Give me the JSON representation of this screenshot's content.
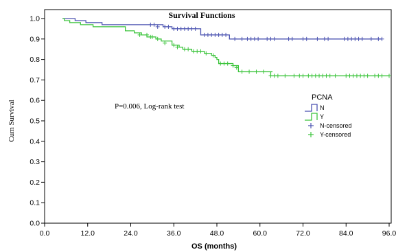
{
  "chart_data": {
    "type": "line",
    "title": "Survival Functions",
    "xlabel": "OS (months)",
    "ylabel": "Cum Survival",
    "xlim": [
      0,
      96
    ],
    "ylim": [
      0,
      1.0
    ],
    "xticks": [
      0,
      12,
      24,
      36,
      48,
      60,
      72,
      84,
      96
    ],
    "xtick_labels": [
      "0.0",
      "12.0",
      "24.0",
      "36.0",
      "48.0",
      "60.0",
      "72.0",
      "84.0",
      "96.0"
    ],
    "yticks": [
      0,
      0.1,
      0.2,
      0.3,
      0.4,
      0.5,
      0.6,
      0.7,
      0.8,
      0.9,
      1.0
    ],
    "ytick_labels": [
      "0.0",
      "0.1",
      "0.2",
      "0.3",
      "0.4",
      "0.5",
      "0.6",
      "0.7",
      "0.8",
      "0.9",
      "1.0"
    ],
    "grid": false,
    "legend": {
      "title": "PCNA",
      "placement": "right",
      "entries": [
        {
          "label": "N",
          "kind": "line",
          "color": "#4a52b0"
        },
        {
          "label": "Y",
          "kind": "line",
          "color": "#3cc43c"
        },
        {
          "label": "N-censored",
          "kind": "censor",
          "color": "#4a52b0"
        },
        {
          "label": "Y-censored",
          "kind": "censor",
          "color": "#3cc43c"
        }
      ]
    },
    "annotations": [
      {
        "text": "P=0.006, Log-rank test",
        "x": 19.5,
        "y": 0.56
      }
    ],
    "series": [
      {
        "name": "N",
        "color": "#4a52b0",
        "steps": [
          [
            5,
            1.0
          ],
          [
            8.5,
            0.99
          ],
          [
            11.5,
            0.98
          ],
          [
            16,
            0.97
          ],
          [
            33,
            0.96
          ],
          [
            35.5,
            0.95
          ],
          [
            43.5,
            0.92
          ],
          [
            51.5,
            0.9
          ],
          [
            94,
            0.9
          ]
        ],
        "censored": [
          [
            29.5,
            0.97
          ],
          [
            30.5,
            0.97
          ],
          [
            31.5,
            0.96
          ],
          [
            33.5,
            0.96
          ],
          [
            34.5,
            0.96
          ],
          [
            36,
            0.95
          ],
          [
            37,
            0.95
          ],
          [
            38,
            0.95
          ],
          [
            39,
            0.95
          ],
          [
            40,
            0.95
          ],
          [
            41,
            0.95
          ],
          [
            42,
            0.95
          ],
          [
            44.5,
            0.92
          ],
          [
            45.5,
            0.92
          ],
          [
            46.5,
            0.92
          ],
          [
            47.5,
            0.92
          ],
          [
            48.5,
            0.92
          ],
          [
            49.5,
            0.92
          ],
          [
            50.5,
            0.92
          ],
          [
            53,
            0.9
          ],
          [
            55,
            0.9
          ],
          [
            56.5,
            0.9
          ],
          [
            57.5,
            0.9
          ],
          [
            58.5,
            0.9
          ],
          [
            59.5,
            0.9
          ],
          [
            62,
            0.9
          ],
          [
            63,
            0.9
          ],
          [
            64,
            0.9
          ],
          [
            68,
            0.9
          ],
          [
            69,
            0.9
          ],
          [
            72,
            0.9
          ],
          [
            73,
            0.9
          ],
          [
            76,
            0.9
          ],
          [
            78,
            0.9
          ],
          [
            79,
            0.9
          ],
          [
            83.5,
            0.9
          ],
          [
            84.5,
            0.9
          ],
          [
            85.5,
            0.9
          ],
          [
            86.5,
            0.9
          ],
          [
            87.5,
            0.9
          ],
          [
            88.5,
            0.9
          ],
          [
            91,
            0.9
          ],
          [
            93,
            0.9
          ],
          [
            94,
            0.9
          ]
        ]
      },
      {
        "name": "Y",
        "color": "#3cc43c",
        "steps": [
          [
            5,
            1.0
          ],
          [
            5.5,
            0.99
          ],
          [
            7,
            0.98
          ],
          [
            10,
            0.97
          ],
          [
            13.5,
            0.96
          ],
          [
            22.5,
            0.94
          ],
          [
            25,
            0.93
          ],
          [
            27,
            0.92
          ],
          [
            28.5,
            0.91
          ],
          [
            31,
            0.9
          ],
          [
            32.5,
            0.89
          ],
          [
            35.5,
            0.87
          ],
          [
            37.5,
            0.86
          ],
          [
            38.5,
            0.85
          ],
          [
            41,
            0.84
          ],
          [
            44.5,
            0.83
          ],
          [
            46.5,
            0.82
          ],
          [
            47.5,
            0.81
          ],
          [
            48,
            0.8
          ],
          [
            48.5,
            0.78
          ],
          [
            50,
            0.78
          ],
          [
            52.5,
            0.77
          ],
          [
            54,
            0.74
          ],
          [
            58.5,
            0.74
          ],
          [
            63.5,
            0.74
          ],
          [
            63,
            0.72
          ],
          [
            96,
            0.72
          ]
        ],
        "censored": [
          [
            26.5,
            0.92
          ],
          [
            28.5,
            0.92
          ],
          [
            29.5,
            0.91
          ],
          [
            30,
            0.91
          ],
          [
            31.5,
            0.9
          ],
          [
            33.5,
            0.88
          ],
          [
            36,
            0.87
          ],
          [
            37,
            0.86
          ],
          [
            39,
            0.85
          ],
          [
            40,
            0.85
          ],
          [
            41.5,
            0.84
          ],
          [
            42.5,
            0.84
          ],
          [
            43.5,
            0.84
          ],
          [
            45,
            0.83
          ],
          [
            47,
            0.82
          ],
          [
            49,
            0.78
          ],
          [
            50,
            0.78
          ],
          [
            51,
            0.78
          ],
          [
            52.5,
            0.77
          ],
          [
            53.5,
            0.76
          ],
          [
            55,
            0.74
          ],
          [
            57,
            0.74
          ],
          [
            59,
            0.74
          ],
          [
            61,
            0.74
          ],
          [
            63,
            0.72
          ],
          [
            64,
            0.72
          ],
          [
            65,
            0.72
          ],
          [
            67,
            0.72
          ],
          [
            69.5,
            0.72
          ],
          [
            71,
            0.72
          ],
          [
            72,
            0.72
          ],
          [
            73.5,
            0.72
          ],
          [
            74.5,
            0.72
          ],
          [
            75.5,
            0.72
          ],
          [
            76.5,
            0.72
          ],
          [
            77.5,
            0.72
          ],
          [
            78.5,
            0.72
          ],
          [
            79.5,
            0.72
          ],
          [
            81,
            0.72
          ],
          [
            84,
            0.72
          ],
          [
            85,
            0.72
          ],
          [
            86,
            0.72
          ],
          [
            87,
            0.72
          ],
          [
            88,
            0.72
          ],
          [
            89,
            0.72
          ],
          [
            90,
            0.72
          ],
          [
            92,
            0.72
          ],
          [
            93,
            0.72
          ],
          [
            94,
            0.72
          ],
          [
            96,
            0.72
          ]
        ]
      }
    ]
  }
}
